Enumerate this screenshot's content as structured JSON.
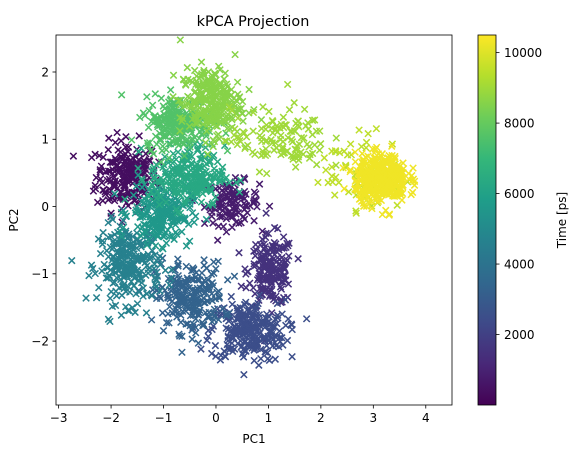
{
  "chart_data": {
    "type": "scatter",
    "title": "kPCA Projection",
    "xlabel": "PC1",
    "ylabel": "PC2",
    "xlim": [
      -3.05,
      4.5
    ],
    "ylim": [
      -2.95,
      2.55
    ],
    "x_ticks": [
      -3,
      -2,
      -1,
      0,
      1,
      2,
      3,
      4
    ],
    "y_ticks": [
      -2,
      -1,
      0,
      1,
      2
    ],
    "x_tick_labels": [
      "−3",
      "−2",
      "−1",
      "0",
      "1",
      "2",
      "3",
      "4"
    ],
    "y_tick_labels": [
      "−2",
      "−1",
      "0",
      "1",
      "2"
    ],
    "marker": "x",
    "grid": false,
    "colormap": "viridis",
    "colorbar": {
      "label": "Time [ps]",
      "range": [
        0,
        10500
      ],
      "ticks": [
        2000,
        4000,
        6000,
        8000,
        10000
      ],
      "tick_labels": [
        "2000",
        "4000",
        "6000",
        "8000",
        "10000"
      ]
    },
    "clusters": [
      {
        "time": 400,
        "center": [
          -1.7,
          0.45
        ],
        "spread": [
          0.45,
          0.4
        ],
        "count": 220
      },
      {
        "time": 800,
        "center": [
          0.3,
          0.05
        ],
        "spread": [
          0.4,
          0.25
        ],
        "count": 120
      },
      {
        "time": 1500,
        "center": [
          1.05,
          -0.95
        ],
        "spread": [
          0.33,
          0.4
        ],
        "count": 190
      },
      {
        "time": 2500,
        "center": [
          0.6,
          -1.85
        ],
        "spread": [
          0.55,
          0.35
        ],
        "count": 260
      },
      {
        "time": 3300,
        "center": [
          -0.5,
          -1.35
        ],
        "spread": [
          0.5,
          0.4
        ],
        "count": 230
      },
      {
        "time": 4600,
        "center": [
          -1.65,
          -0.85
        ],
        "spread": [
          0.45,
          0.45
        ],
        "count": 260
      },
      {
        "time": 5600,
        "center": [
          -1.05,
          -0.1
        ],
        "spread": [
          0.45,
          0.35
        ],
        "count": 220
      },
      {
        "time": 6300,
        "center": [
          -0.55,
          0.45
        ],
        "spread": [
          0.55,
          0.35
        ],
        "count": 240
      },
      {
        "time": 7600,
        "center": [
          -0.7,
          1.25
        ],
        "spread": [
          0.5,
          0.3
        ],
        "count": 240
      },
      {
        "time": 8600,
        "center": [
          -0.1,
          1.55
        ],
        "spread": [
          0.45,
          0.4
        ],
        "count": 260
      },
      {
        "time": 9000,
        "center": [
          1.2,
          1.0
        ],
        "spread": [
          0.7,
          0.35
        ],
        "count": 120
      },
      {
        "time": 9500,
        "center": [
          2.8,
          0.5
        ],
        "spread": [
          0.6,
          0.45
        ],
        "count": 70
      },
      {
        "time": 10300,
        "center": [
          3.15,
          0.42
        ],
        "spread": [
          0.38,
          0.27
        ],
        "count": 420
      }
    ]
  }
}
